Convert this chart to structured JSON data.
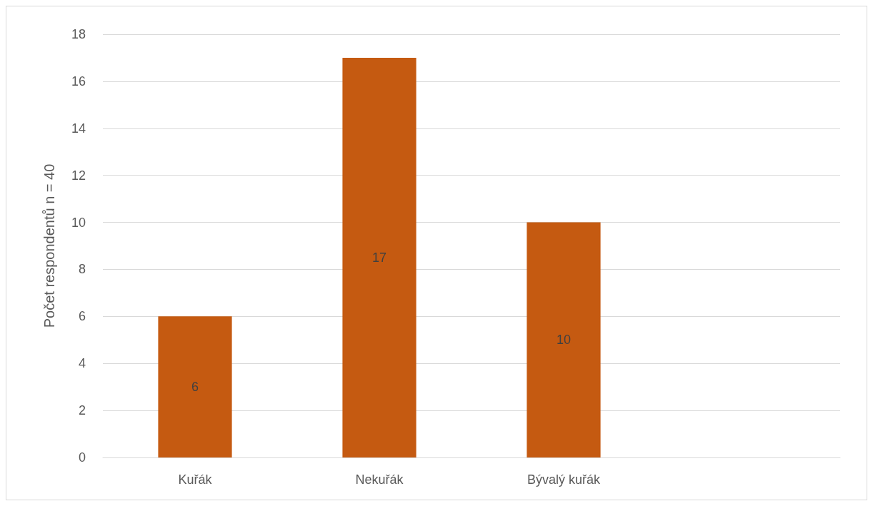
{
  "chart_data": {
    "type": "bar",
    "ylabel": "Počet respondentů n = 40",
    "categories": [
      "Kuřák",
      "Nekuřák",
      "Bývalý kuřák",
      null
    ],
    "values": [
      6,
      17,
      10,
      null
    ],
    "color": "#c55a11",
    "ylim": [
      0,
      18
    ],
    "yticks": [
      0,
      2,
      4,
      6,
      8,
      10,
      12,
      14,
      16,
      18
    ],
    "grid": "y",
    "data_labels": true
  }
}
